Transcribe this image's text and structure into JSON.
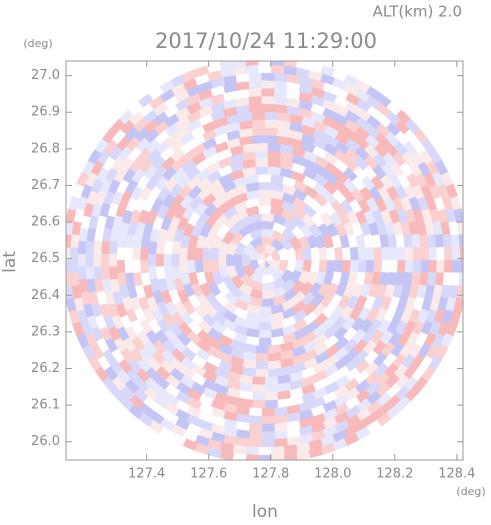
{
  "chart_data": {
    "type": "radar",
    "title": "2017/10/24 11:29:00",
    "annotation": "ALT(km) 2.0",
    "x_label": "lon",
    "y_label": "lat",
    "x_unit": "(deg)",
    "y_unit": "(deg)",
    "xlim": [
      127.14,
      128.42
    ],
    "ylim": [
      25.95,
      27.04
    ],
    "xticks": [
      127.4,
      127.6,
      127.8,
      {
        "value": 128.0,
        "label": "128.0"
      },
      128.2,
      128.4
    ],
    "yticks": [
      {
        "value": 26.0,
        "label": "26.0"
      },
      26.1,
      26.2,
      26.3,
      26.4,
      26.5,
      26.6,
      26.7,
      26.8,
      26.9,
      {
        "value": 27.0,
        "label": "27.0"
      }
    ]
  }
}
